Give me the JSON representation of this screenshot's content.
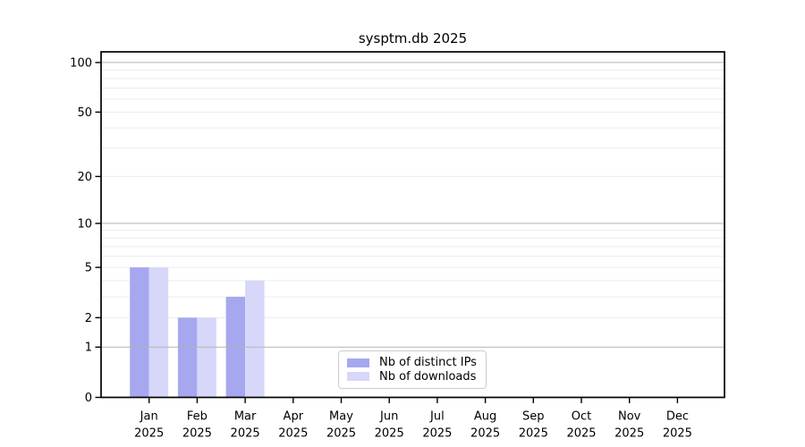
{
  "figure": {
    "title": "sysptm.db 2025"
  },
  "chart_data": {
    "type": "bar",
    "title": "sysptm.db 2025",
    "x_year": "2025",
    "categories": [
      "Jan",
      "Feb",
      "Mar",
      "Apr",
      "May",
      "Jun",
      "Jul",
      "Aug",
      "Sep",
      "Oct",
      "Nov",
      "Dec"
    ],
    "series": [
      {
        "name": "Nb of distinct IPs",
        "color": "#a7a7f0",
        "values": [
          5,
          2,
          3,
          0,
          0,
          0,
          0,
          0,
          0,
          0,
          0,
          0
        ]
      },
      {
        "name": "Nb of downloads",
        "color": "#d7d7fa",
        "values": [
          5,
          2,
          4,
          0,
          0,
          0,
          0,
          0,
          0,
          0,
          0,
          0
        ]
      }
    ],
    "yscale": "log1p",
    "ylim": [
      0,
      116
    ],
    "yticks": [
      0,
      1,
      2,
      5,
      10,
      20,
      50,
      100
    ],
    "major_gridlines": [
      1,
      10,
      100
    ],
    "minor_gridlines": [
      2,
      3,
      4,
      5,
      6,
      7,
      8,
      9,
      20,
      30,
      40,
      50,
      60,
      70,
      80,
      90
    ],
    "grid": true,
    "legend_position": "lower center"
  },
  "colors": {
    "background": "#ffffff",
    "axis": "#000000",
    "tick_label": "#000000",
    "major_grid": "#b4b4b4",
    "minor_grid": "#ececec",
    "legend_border": "#cccccc",
    "series": [
      "#a7a7f0",
      "#d7d7fa"
    ]
  }
}
